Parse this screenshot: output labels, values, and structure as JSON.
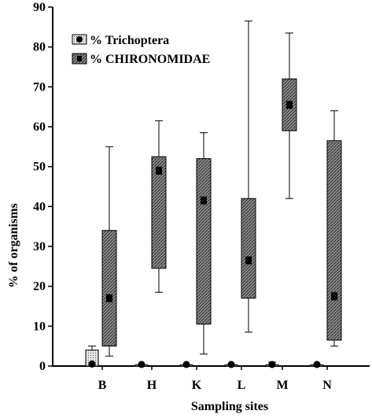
{
  "chart_data": {
    "type": "box",
    "xlabel": "Sampling sites",
    "ylabel": "% of organisms",
    "ylim": [
      0,
      90
    ],
    "yticks": [
      0,
      10,
      20,
      30,
      40,
      50,
      60,
      70,
      80,
      90
    ],
    "categories": [
      "B",
      "H",
      "K",
      "L",
      "M",
      "N"
    ],
    "legend_position": "top-left",
    "series": [
      {
        "name": "% Trichoptera",
        "fill": "#d8d8d8",
        "pattern": "dots",
        "boxes": [
          {
            "site": "B",
            "whisker_low": 0,
            "q1": 0,
            "median": 0.5,
            "q3": 4,
            "whisker_high": 5
          },
          {
            "site": "H",
            "whisker_low": 0,
            "q1": 0,
            "median": 0,
            "q3": 0.3,
            "whisker_high": 0.3
          },
          {
            "site": "K",
            "whisker_low": 0,
            "q1": 0,
            "median": 0,
            "q3": 0.3,
            "whisker_high": 0.3
          },
          {
            "site": "L",
            "whisker_low": 0,
            "q1": 0,
            "median": 0,
            "q3": 0.3,
            "whisker_high": 0.3
          },
          {
            "site": "M",
            "whisker_low": 0,
            "q1": 0,
            "median": 0,
            "q3": 0.3,
            "whisker_high": 1
          },
          {
            "site": "N",
            "whisker_low": 0,
            "q1": 0,
            "median": 0,
            "q3": 0.3,
            "whisker_high": 0.3
          }
        ]
      },
      {
        "name": "% CHIRONOMIDAE",
        "fill": "#7a7a7a",
        "pattern": "hatch",
        "boxes": [
          {
            "site": "B",
            "whisker_low": 2.5,
            "q1": 5,
            "median": 17,
            "q3": 34,
            "whisker_high": 55
          },
          {
            "site": "H",
            "whisker_low": 18.5,
            "q1": 24.5,
            "median": 49,
            "q3": 52.5,
            "whisker_high": 61.5
          },
          {
            "site": "K",
            "whisker_low": 3,
            "q1": 10.5,
            "median": 41.5,
            "q3": 52,
            "whisker_high": 58.5
          },
          {
            "site": "L",
            "whisker_low": 8.5,
            "q1": 17,
            "median": 26.5,
            "q3": 42,
            "whisker_high": 86.5
          },
          {
            "site": "M",
            "whisker_low": 42,
            "q1": 59,
            "median": 65.5,
            "q3": 72,
            "whisker_high": 83.5
          },
          {
            "site": "N",
            "whisker_low": 5,
            "q1": 6.5,
            "median": 17.5,
            "q3": 56.5,
            "whisker_high": 64
          }
        ]
      }
    ]
  }
}
